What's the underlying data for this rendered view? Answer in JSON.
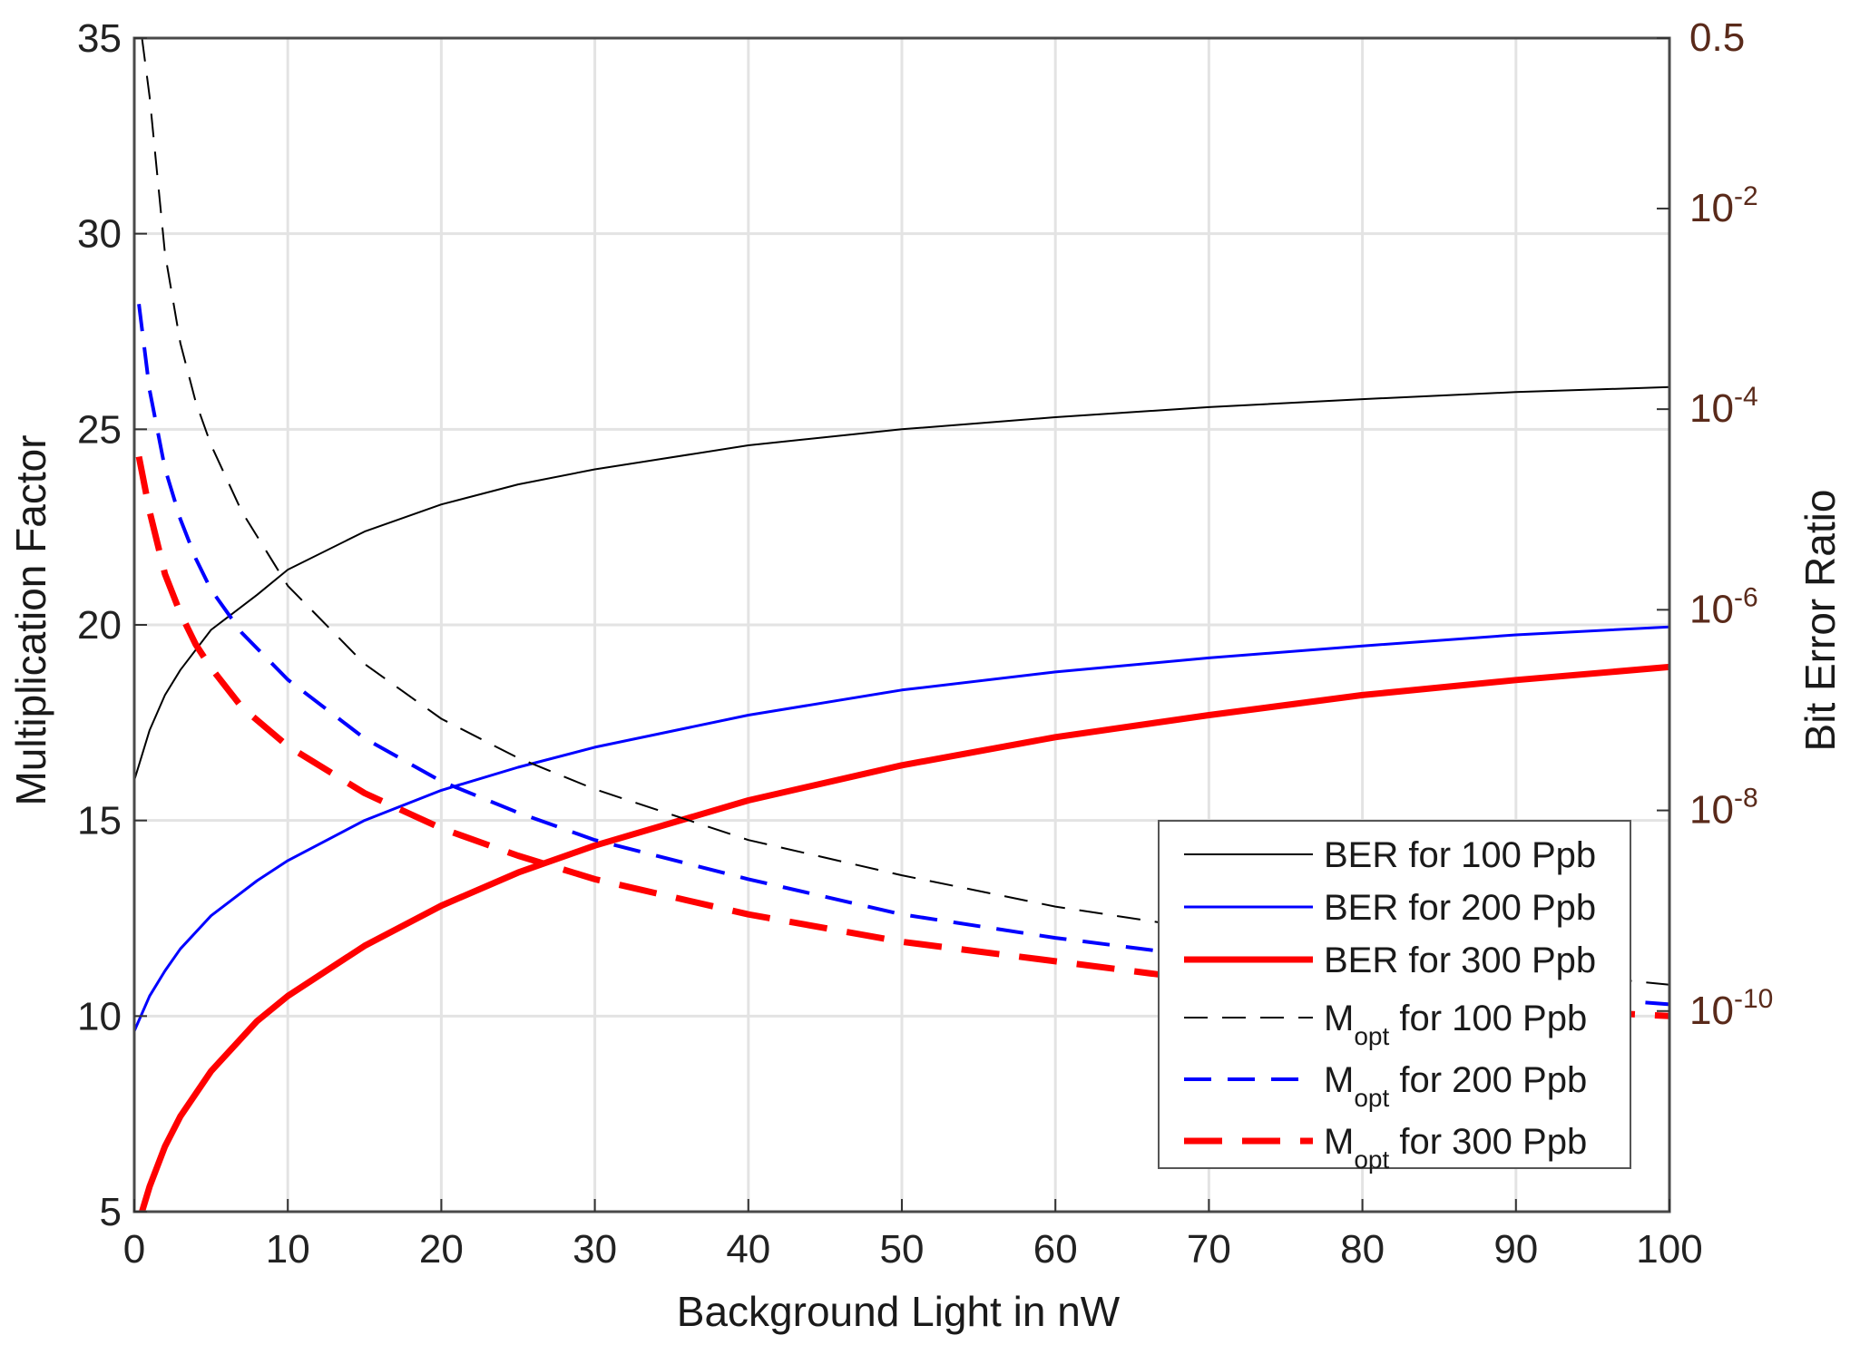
{
  "chart_data": {
    "type": "line",
    "xlabel": "Background Light in nW",
    "ylabel_left": "Multiplication Factor",
    "ylabel_right": "Bit Error Ratio",
    "xlim": [
      0,
      100
    ],
    "ylim_left": [
      5,
      35
    ],
    "ylim_right_log10": [
      -12,
      -0.301
    ],
    "grid": true,
    "x_ticks": [
      "0",
      "10",
      "20",
      "30",
      "40",
      "50",
      "60",
      "70",
      "80",
      "90",
      "100"
    ],
    "y_left_ticks": [
      "5",
      "10",
      "15",
      "20",
      "25",
      "30",
      "35"
    ],
    "y_right_ticks": [
      {
        "base": "0.5",
        "exp": "",
        "log10": -0.301
      },
      {
        "base": "10",
        "exp": "-2",
        "log10": -2
      },
      {
        "base": "10",
        "exp": "-4",
        "log10": -4
      },
      {
        "base": "10",
        "exp": "-6",
        "log10": -6
      },
      {
        "base": "10",
        "exp": "-8",
        "log10": -8
      },
      {
        "base": "10",
        "exp": "-10",
        "log10": -10
      }
    ],
    "legend_position": "bottom-right",
    "series": [
      {
        "name": "BER for 100 Ppb",
        "label": "BER for 100 Ppb",
        "axis": "right",
        "style": "solid",
        "color": "#000000",
        "width": 2,
        "x": [
          0,
          1,
          2,
          3,
          5,
          8,
          10,
          15,
          20,
          25,
          30,
          40,
          50,
          60,
          70,
          80,
          90,
          100
        ],
        "y_log10": [
          -7.7,
          -7.2,
          -6.85,
          -6.6,
          -6.2,
          -5.85,
          -5.6,
          -5.22,
          -4.95,
          -4.75,
          -4.6,
          -4.36,
          -4.2,
          -4.08,
          -3.98,
          -3.9,
          -3.83,
          -3.78
        ]
      },
      {
        "name": "BER for 200 Ppb",
        "label": "BER for 200 Ppb",
        "axis": "right",
        "style": "solid",
        "color": "#0000ff",
        "width": 3,
        "x": [
          0,
          1,
          2,
          3,
          5,
          8,
          10,
          15,
          20,
          25,
          30,
          40,
          50,
          60,
          70,
          80,
          90,
          100
        ],
        "y_log10": [
          -10.2,
          -9.85,
          -9.6,
          -9.38,
          -9.05,
          -8.7,
          -8.5,
          -8.1,
          -7.8,
          -7.57,
          -7.37,
          -7.05,
          -6.8,
          -6.62,
          -6.48,
          -6.36,
          -6.25,
          -6.17
        ]
      },
      {
        "name": "BER for 300 Ppb",
        "label": "BER for 300 Ppb",
        "axis": "right",
        "style": "solid",
        "color": "#ff0000",
        "width": 7,
        "x": [
          0.5,
          1,
          2,
          3,
          5,
          8,
          10,
          15,
          20,
          25,
          30,
          40,
          50,
          60,
          70,
          80,
          90,
          100
        ],
        "y_log10": [
          -12,
          -11.75,
          -11.35,
          -11.05,
          -10.6,
          -10.1,
          -9.85,
          -9.35,
          -8.95,
          -8.62,
          -8.35,
          -7.9,
          -7.55,
          -7.27,
          -7.05,
          -6.85,
          -6.7,
          -6.57
        ]
      },
      {
        "name": "Mopt for 100 Ppb",
        "label": "M",
        "sub": "opt",
        "rest": " for 100 Ppb",
        "axis": "left",
        "style": "dash",
        "color": "#000000",
        "width": 2,
        "x": [
          0.5,
          1,
          2,
          3,
          4,
          5,
          7,
          10,
          15,
          20,
          25,
          30,
          40,
          50,
          60,
          70,
          80,
          90,
          100
        ],
        "y": [
          35,
          33.5,
          29.5,
          27.2,
          25.7,
          24.6,
          22.9,
          21.0,
          19.0,
          17.6,
          16.6,
          15.8,
          14.5,
          13.6,
          12.8,
          12.2,
          11.6,
          11.2,
          10.8
        ]
      },
      {
        "name": "Mopt for 200 Ppb",
        "label": "M",
        "sub": "opt",
        "rest": " for 200 Ppb",
        "axis": "left",
        "style": "dash",
        "color": "#0000ff",
        "width": 4,
        "x": [
          0.3,
          1,
          2,
          3,
          4,
          5,
          7,
          10,
          15,
          20,
          25,
          30,
          40,
          50,
          60,
          70,
          80,
          90,
          100
        ],
        "y": [
          28.2,
          26.0,
          24.0,
          22.7,
          21.7,
          20.9,
          19.8,
          18.6,
          17.1,
          16.0,
          15.2,
          14.5,
          13.5,
          12.6,
          12.0,
          11.5,
          11.0,
          10.6,
          10.3
        ]
      },
      {
        "name": "Mopt for 300 Ppb",
        "label": "M",
        "sub": "opt",
        "rest": " for 300 Ppb",
        "axis": "left",
        "style": "dash",
        "color": "#ff0000",
        "width": 7,
        "x": [
          0.3,
          1,
          2,
          3,
          4,
          5,
          7,
          10,
          15,
          20,
          25,
          30,
          40,
          50,
          60,
          70,
          80,
          90,
          100
        ],
        "y": [
          24.3,
          22.9,
          21.3,
          20.3,
          19.5,
          18.9,
          17.9,
          16.9,
          15.7,
          14.8,
          14.1,
          13.5,
          12.6,
          11.9,
          11.4,
          10.9,
          10.5,
          10.2,
          10.0
        ]
      }
    ]
  }
}
